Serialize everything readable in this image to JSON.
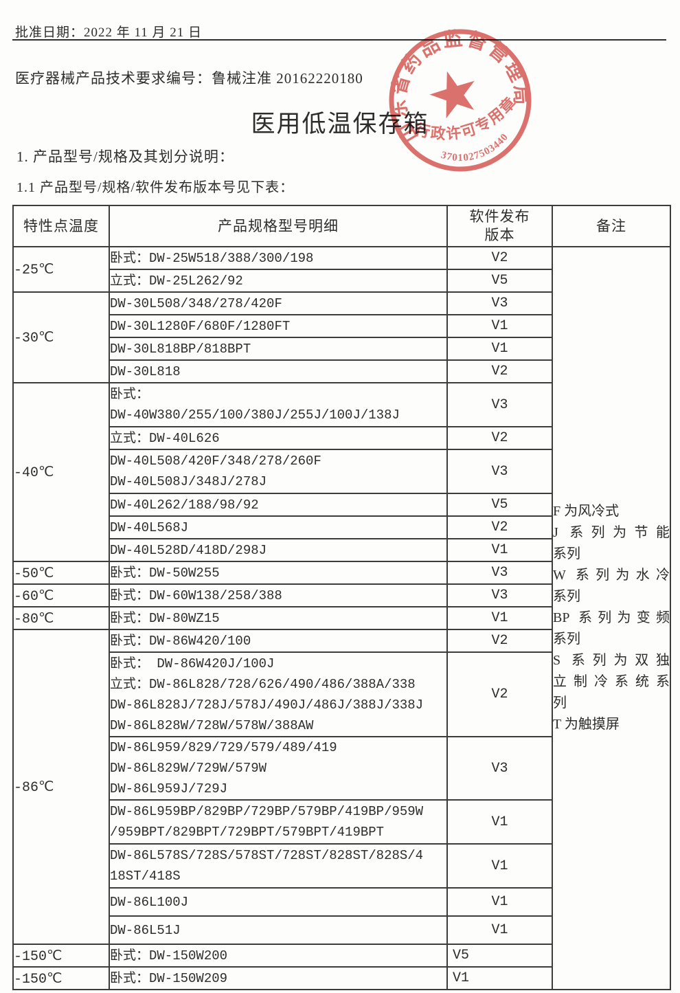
{
  "page": {
    "approval_label": "批准日期：2022 年 11 月 21 日",
    "doc_number_line": "医疗器械产品技术要求编号：鲁械注准 20162220180",
    "title": "医用低温保存箱",
    "section_heading": "1.  产品型号/规格及其划分说明：",
    "subsection_heading": "1.1 产品型号/规格/软件发布版本号见下表："
  },
  "stamp": {
    "ring_text": "山东省药品监督管理局",
    "license_text": "行政许可专用章",
    "serial_number": "3701027503440",
    "color": "#d6534c"
  },
  "table": {
    "header_temp": "特性点温度",
    "header_model": "产品规格型号明细",
    "header_version_line1": "软件发布",
    "header_version_line2": "版本",
    "header_remark": "备注",
    "groups": [
      {
        "temp": "-25℃",
        "rows": [
          {
            "model": "卧式：DW-25W518/388/300/198",
            "version": "V2"
          },
          {
            "model": "立式：DW-25L262/92",
            "version": "V5"
          }
        ]
      },
      {
        "temp": "-30℃",
        "rows": [
          {
            "model": "DW-30L508/348/278/420F",
            "version": "V3"
          },
          {
            "model": "DW-30L1280F/680F/1280FT",
            "version": "V1"
          },
          {
            "model": "DW-30L818BP/818BPT",
            "version": "V1"
          },
          {
            "model": "DW-30L818",
            "version": "V2"
          }
        ]
      },
      {
        "temp": "-40℃",
        "rows": [
          {
            "model": "卧式：\nDW-40W380/255/100/380J/255J/100J/138J",
            "version": "V3"
          },
          {
            "model": "立式：DW-40L626",
            "version": "V2"
          },
          {
            "model": "DW-40L508/420F/348/278/260F\nDW-40L508J/348J/278J",
            "version": "V3"
          },
          {
            "model": "DW-40L262/188/98/92",
            "version": "V5"
          },
          {
            "model": "DW-40L568J",
            "version": "V2"
          },
          {
            "model": "DW-40L528D/418D/298J",
            "version": "V1"
          }
        ]
      },
      {
        "temp": "-50℃",
        "rows": [
          {
            "model": "卧式：DW-50W255",
            "version": "V3"
          }
        ]
      },
      {
        "temp": "-60℃",
        "rows": [
          {
            "model": "卧式：DW-60W138/258/388",
            "version": "V3"
          }
        ]
      },
      {
        "temp": "-80℃",
        "rows": [
          {
            "model": "卧式：DW-80WZ15",
            "version": "V1"
          }
        ]
      },
      {
        "temp": "-86℃",
        "rows": [
          {
            "model": "卧式：DW-86W420/100",
            "version": "V2"
          },
          {
            "model": "卧式： DW-86W420J/100J\n立式：DW-86L828/728/626/490/486/388A/338\nDW-86L828J/728J/578J/490J/486J/388J/338J\nDW-86L828W/728W/578W/388AW",
            "version": "V2"
          },
          {
            "model": "DW-86L959/829/729/579/489/419\nDW-86L829W/729W/579W\nDW-86L959J/729J",
            "version": "V3"
          },
          {
            "model": "DW-86L959BP/829BP/729BP/579BP/419BP/959W\n/959BPT/829BPT/729BPT/579BPT/419BPT",
            "version": "V1"
          },
          {
            "model": "DW-86L578S/728S/578ST/728ST/828ST/828S/4\n18ST/418S",
            "version": "V1"
          },
          {
            "model": "DW-86L100J",
            "version": "V1",
            "tall": true
          },
          {
            "model": "DW-86L51J",
            "version": "V1",
            "tall": true
          }
        ]
      },
      {
        "temp": "-150℃",
        "rows": [
          {
            "model": "卧式：DW-150W200",
            "version": "V5",
            "vleft": true
          }
        ]
      },
      {
        "temp": "-150℃",
        "rows": [
          {
            "model": "卧式：DW-150W209",
            "version": "V1",
            "vleft": true
          }
        ]
      }
    ],
    "remark_lines": [
      {
        "text": "F 为风冷式",
        "justify": false
      },
      {
        "text": "J 系列为节能",
        "justify": true
      },
      {
        "text": "系列",
        "justify": false
      },
      {
        "text": "W 系列为水冷",
        "justify": true
      },
      {
        "text": "系列",
        "justify": false
      },
      {
        "text": "BP 系列为变频",
        "justify": true
      },
      {
        "text": "系列",
        "justify": false
      },
      {
        "text": "S 系列为双独",
        "justify": true
      },
      {
        "text": "立制冷系统系",
        "justify": true
      },
      {
        "text": "列",
        "justify": false
      },
      {
        "text": "T 为触摸屏",
        "justify": false
      }
    ]
  }
}
